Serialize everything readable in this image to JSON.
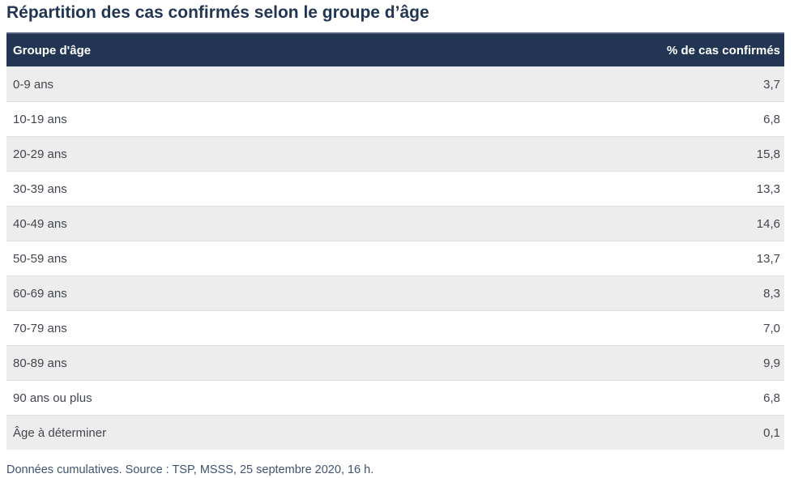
{
  "page": {
    "title": "Répartition des cas confirmés selon le groupe d’âge",
    "footnote": "Données cumulatives. Source : TSP, MSSS, 25 septembre 2020, 16 h."
  },
  "table": {
    "columns": [
      {
        "label": "Groupe d'âge"
      },
      {
        "label": "% de cas confirmés"
      }
    ],
    "rows": [
      {
        "label": "0-9 ans",
        "value": "3,7"
      },
      {
        "label": "10-19 ans",
        "value": "6,8"
      },
      {
        "label": "20-29 ans",
        "value": "15,8"
      },
      {
        "label": "30-39 ans",
        "value": "13,3"
      },
      {
        "label": "40-49 ans",
        "value": "14,6"
      },
      {
        "label": "50-59 ans",
        "value": "13,7"
      },
      {
        "label": "60-69 ans",
        "value": "8,3"
      },
      {
        "label": "70-79 ans",
        "value": "7,0"
      },
      {
        "label": "80-89 ans",
        "value": "9,9"
      },
      {
        "label": "90 ans ou plus",
        "value": "6,8"
      },
      {
        "label": "Âge à déterminer",
        "value": "0,1"
      }
    ]
  },
  "colors": {
    "header_bg": "#223654",
    "header_text": "#ffffff",
    "title_text": "#223654",
    "row_alt_bg": "#ededee",
    "row_border": "#dee0e3",
    "body_text": "#42464d",
    "footnote_text": "#40536d"
  },
  "chart_data": {
    "type": "table",
    "title": "Répartition des cas confirmés selon le groupe d’âge",
    "columns": [
      "Groupe d'âge",
      "% de cas confirmés"
    ],
    "categories": [
      "0-9 ans",
      "10-19 ans",
      "20-29 ans",
      "30-39 ans",
      "40-49 ans",
      "50-59 ans",
      "60-69 ans",
      "70-79 ans",
      "80-89 ans",
      "90 ans ou plus",
      "Âge à déterminer"
    ],
    "values": [
      3.7,
      6.8,
      15.8,
      13.3,
      14.6,
      13.7,
      8.3,
      7.0,
      9.9,
      6.8,
      0.1
    ],
    "value_format": "percent, French decimal comma",
    "source": "Données cumulatives. Source : TSP, MSSS, 25 septembre 2020, 16 h."
  }
}
